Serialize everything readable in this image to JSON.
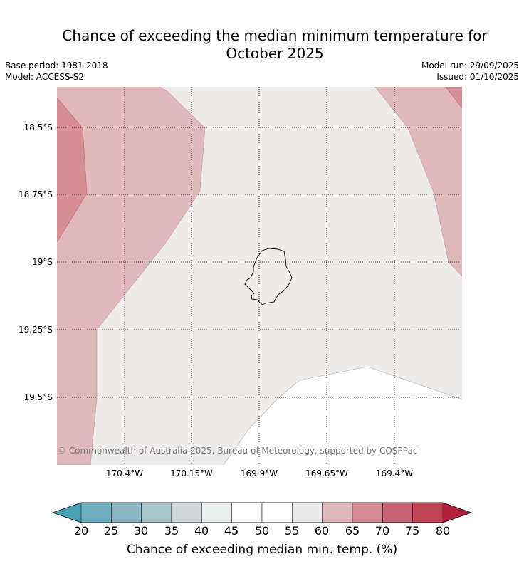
{
  "header": {
    "title_line1": "Chance of exceeding the median minimum temperature for",
    "title_line2": "October 2025",
    "base_period": "Base period: 1981-2018",
    "model": "Model: ACCESS-S2",
    "model_run": "Model run: 29/09/2025",
    "issued": "Issued: 01/10/2025"
  },
  "map": {
    "region": "Niue",
    "latitudes": [
      "18.5°S",
      "18.75°S",
      "19°S",
      "19.25°S",
      "19.5°S"
    ],
    "longitudes": [
      "170.4°W",
      "170.15°W",
      "169.9°W",
      "169.65°W",
      "169.4°W"
    ],
    "copyright": "© Commonwealth of Australia 2025, Bureau of Meteorology, supported by COSPPac"
  },
  "colorbar": {
    "title": "Chance of exceeding median min. temp. (%)",
    "ticks": [
      "20",
      "25",
      "30",
      "35",
      "40",
      "45",
      "50",
      "55",
      "60",
      "65",
      "70",
      "75",
      "80"
    ],
    "colors": [
      "#4aa0b4",
      "#6fb0c0",
      "#8cb6c3",
      "#a8c6ca",
      "#d0d8d9",
      "#eaf0f0",
      "#ffffff",
      "#ffffff",
      "#eeeceb",
      "#e1b9bd",
      "#d68d96",
      "#c86473",
      "#c04555",
      "#b3203e"
    ]
  }
}
